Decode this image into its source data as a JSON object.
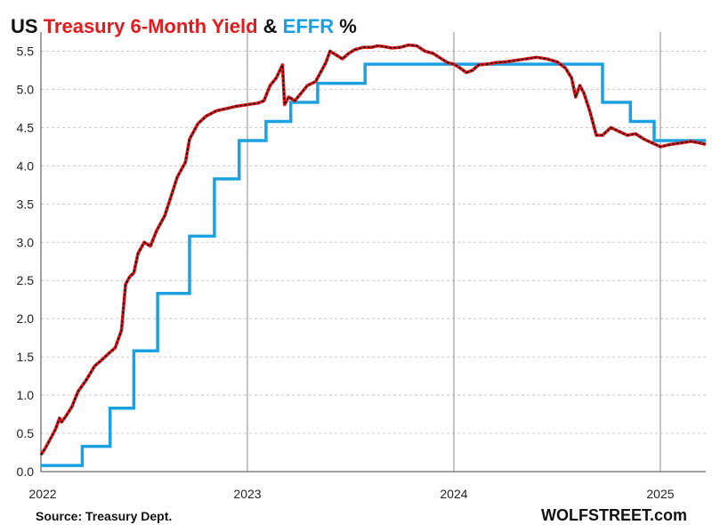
{
  "chart_data": {
    "type": "line",
    "title_parts": [
      {
        "text": "US ",
        "color": "#111111"
      },
      {
        "text": "Treasury 6-Month Yield",
        "color": "#e41a1c"
      },
      {
        "text": " & ",
        "color": "#111111"
      },
      {
        "text": "EFFR",
        "color": "#1ba1e2"
      },
      {
        "text": " %",
        "color": "#111111"
      }
    ],
    "y_ticks": [
      "0.0",
      "0.5",
      "1.0",
      "1.5",
      "2.0",
      "2.5",
      "3.0",
      "3.5",
      "4.0",
      "4.5",
      "5.0",
      "5.5"
    ],
    "x_ticks": [
      {
        "label": "2022",
        "t": 2022.0
      },
      {
        "label": "2023",
        "t": 2023.0
      },
      {
        "label": "2024",
        "t": 2024.0
      },
      {
        "label": "2025",
        "t": 2025.0
      }
    ],
    "xlim": [
      2022.0,
      2025.22
    ],
    "ylim": [
      0.0,
      5.75
    ],
    "grid": {
      "horizontal": "dashed",
      "vertical": "year-lines"
    },
    "source": "Source: Treasury Dept.",
    "brand": "WOLFSTREET.com",
    "series": [
      {
        "name": "Treasury 6-Month Yield",
        "color": "#e41a1c",
        "overlay_color": "#111111",
        "points": [
          [
            2022.0,
            0.22
          ],
          [
            2022.02,
            0.3
          ],
          [
            2022.05,
            0.45
          ],
          [
            2022.07,
            0.55
          ],
          [
            2022.09,
            0.7
          ],
          [
            2022.1,
            0.65
          ],
          [
            2022.12,
            0.72
          ],
          [
            2022.15,
            0.85
          ],
          [
            2022.18,
            1.05
          ],
          [
            2022.22,
            1.2
          ],
          [
            2022.26,
            1.38
          ],
          [
            2022.29,
            1.45
          ],
          [
            2022.33,
            1.55
          ],
          [
            2022.36,
            1.62
          ],
          [
            2022.39,
            1.85
          ],
          [
            2022.41,
            2.45
          ],
          [
            2022.43,
            2.55
          ],
          [
            2022.45,
            2.6
          ],
          [
            2022.47,
            2.85
          ],
          [
            2022.5,
            3.0
          ],
          [
            2022.53,
            2.95
          ],
          [
            2022.56,
            3.15
          ],
          [
            2022.6,
            3.35
          ],
          [
            2022.63,
            3.6
          ],
          [
            2022.66,
            3.85
          ],
          [
            2022.7,
            4.05
          ],
          [
            2022.72,
            4.35
          ],
          [
            2022.76,
            4.55
          ],
          [
            2022.8,
            4.65
          ],
          [
            2022.85,
            4.72
          ],
          [
            2022.9,
            4.75
          ],
          [
            2022.95,
            4.78
          ],
          [
            2023.0,
            4.8
          ],
          [
            2023.05,
            4.82
          ],
          [
            2023.08,
            4.85
          ],
          [
            2023.11,
            5.05
          ],
          [
            2023.14,
            5.15
          ],
          [
            2023.17,
            5.32
          ],
          [
            2023.18,
            4.8
          ],
          [
            2023.2,
            4.9
          ],
          [
            2023.23,
            4.85
          ],
          [
            2023.26,
            4.95
          ],
          [
            2023.29,
            5.05
          ],
          [
            2023.33,
            5.1
          ],
          [
            2023.36,
            5.25
          ],
          [
            2023.38,
            5.35
          ],
          [
            2023.4,
            5.5
          ],
          [
            2023.43,
            5.45
          ],
          [
            2023.46,
            5.4
          ],
          [
            2023.49,
            5.47
          ],
          [
            2023.52,
            5.52
          ],
          [
            2023.56,
            5.55
          ],
          [
            2023.6,
            5.55
          ],
          [
            2023.63,
            5.57
          ],
          [
            2023.66,
            5.56
          ],
          [
            2023.7,
            5.54
          ],
          [
            2023.74,
            5.55
          ],
          [
            2023.78,
            5.58
          ],
          [
            2023.82,
            5.57
          ],
          [
            2023.86,
            5.5
          ],
          [
            2023.9,
            5.47
          ],
          [
            2023.94,
            5.4
          ],
          [
            2023.97,
            5.35
          ],
          [
            2024.0,
            5.33
          ],
          [
            2024.03,
            5.28
          ],
          [
            2024.06,
            5.22
          ],
          [
            2024.09,
            5.25
          ],
          [
            2024.12,
            5.32
          ],
          [
            2024.16,
            5.33
          ],
          [
            2024.2,
            5.35
          ],
          [
            2024.25,
            5.36
          ],
          [
            2024.3,
            5.38
          ],
          [
            2024.35,
            5.4
          ],
          [
            2024.4,
            5.42
          ],
          [
            2024.45,
            5.4
          ],
          [
            2024.5,
            5.36
          ],
          [
            2024.54,
            5.28
          ],
          [
            2024.57,
            5.15
          ],
          [
            2024.59,
            4.9
          ],
          [
            2024.61,
            5.05
          ],
          [
            2024.63,
            4.95
          ],
          [
            2024.66,
            4.7
          ],
          [
            2024.69,
            4.4
          ],
          [
            2024.72,
            4.4
          ],
          [
            2024.76,
            4.5
          ],
          [
            2024.8,
            4.45
          ],
          [
            2024.84,
            4.4
          ],
          [
            2024.88,
            4.42
          ],
          [
            2024.92,
            4.35
          ],
          [
            2024.96,
            4.3
          ],
          [
            2025.0,
            4.25
          ],
          [
            2025.05,
            4.28
          ],
          [
            2025.1,
            4.3
          ],
          [
            2025.15,
            4.32
          ],
          [
            2025.19,
            4.3
          ],
          [
            2025.22,
            4.28
          ]
        ]
      },
      {
        "name": "EFFR",
        "color": "#1ba1e2",
        "points": [
          [
            2022.0,
            0.08
          ],
          [
            2022.2,
            0.08
          ],
          [
            2022.2,
            0.33
          ],
          [
            2022.335,
            0.33
          ],
          [
            2022.335,
            0.83
          ],
          [
            2022.45,
            0.83
          ],
          [
            2022.45,
            1.58
          ],
          [
            2022.565,
            1.58
          ],
          [
            2022.565,
            2.33
          ],
          [
            2022.72,
            2.33
          ],
          [
            2022.72,
            3.08
          ],
          [
            2022.84,
            3.08
          ],
          [
            2022.84,
            3.83
          ],
          [
            2022.96,
            3.83
          ],
          [
            2022.96,
            4.33
          ],
          [
            2023.09,
            4.33
          ],
          [
            2023.09,
            4.58
          ],
          [
            2023.21,
            4.58
          ],
          [
            2023.21,
            4.83
          ],
          [
            2023.34,
            4.83
          ],
          [
            2023.34,
            5.08
          ],
          [
            2023.57,
            5.08
          ],
          [
            2023.57,
            5.33
          ],
          [
            2024.72,
            5.33
          ],
          [
            2024.72,
            4.83
          ],
          [
            2024.855,
            4.83
          ],
          [
            2024.855,
            4.58
          ],
          [
            2024.97,
            4.58
          ],
          [
            2024.97,
            4.33
          ],
          [
            2025.22,
            4.33
          ]
        ]
      }
    ]
  }
}
